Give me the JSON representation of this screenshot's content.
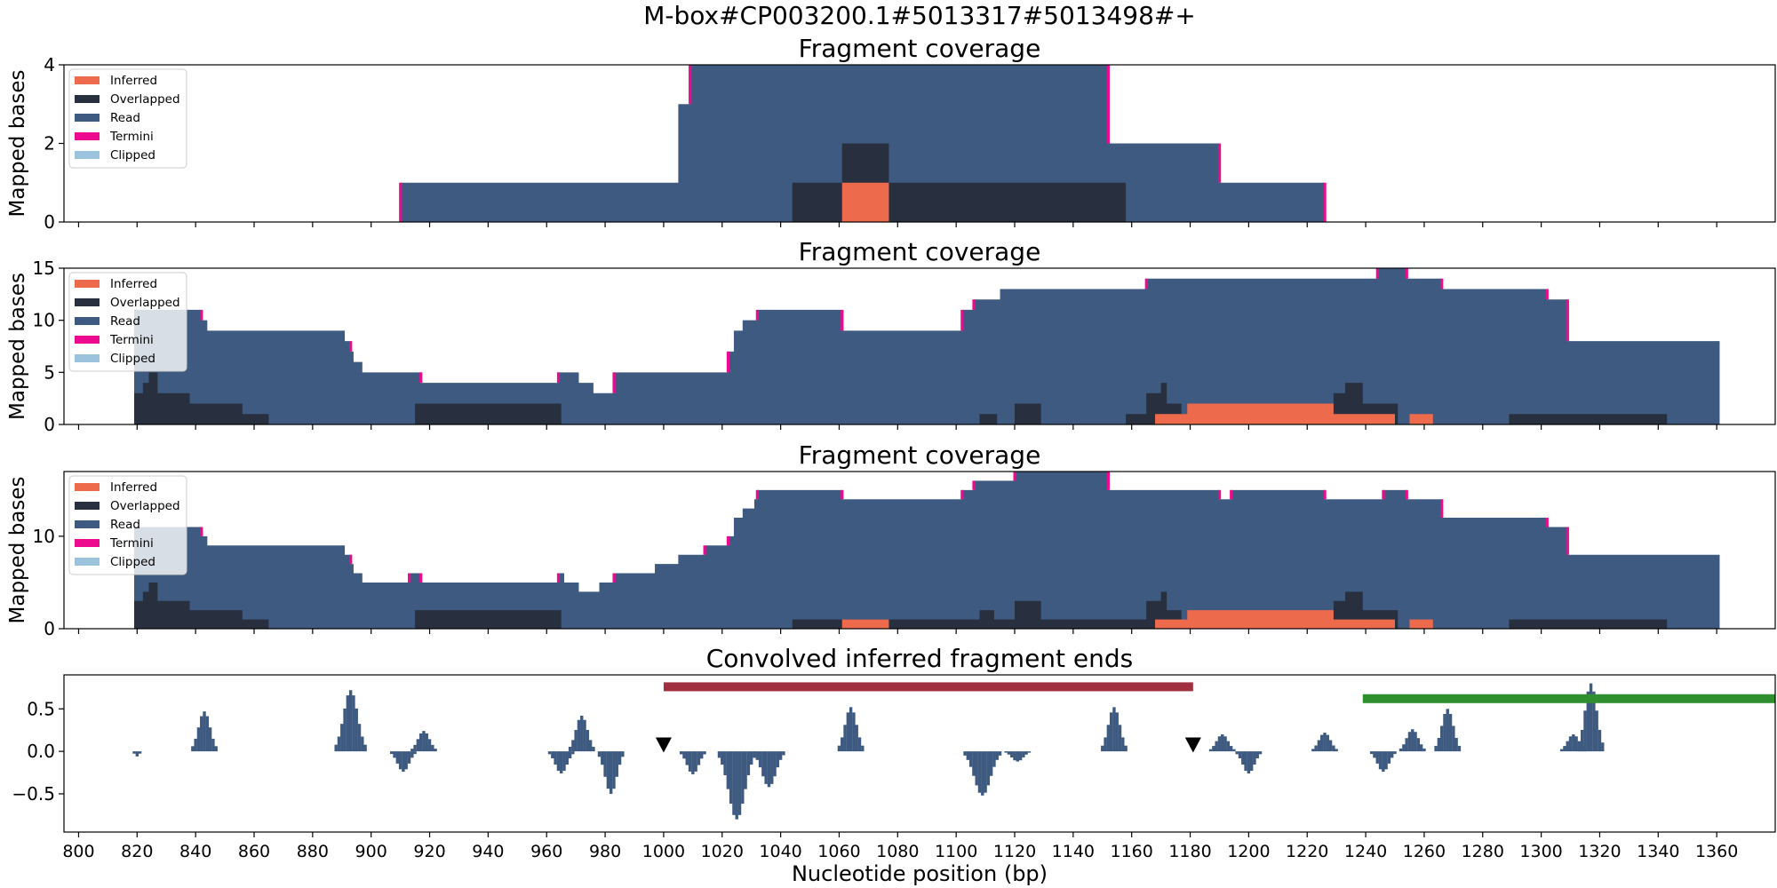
{
  "figure": {
    "suptitle": "M-box#CP003200.1#5013317#5013498#+",
    "xlabel": "Nucleotide position (bp)",
    "x_ticks": [
      800,
      820,
      840,
      860,
      880,
      900,
      920,
      940,
      960,
      980,
      1000,
      1020,
      1040,
      1060,
      1080,
      1100,
      1120,
      1140,
      1160,
      1180,
      1200,
      1220,
      1240,
      1260,
      1280,
      1300,
      1320,
      1340,
      1360
    ],
    "xlim": [
      795,
      1380
    ]
  },
  "legend": [
    {
      "label": "Inferred",
      "color": "#ee6a4d"
    },
    {
      "label": "Overlapped",
      "color": "#28303f"
    },
    {
      "label": "Read",
      "color": "#3e5a80"
    },
    {
      "label": "Termini",
      "color": "#ee0a8e"
    },
    {
      "label": "Clipped",
      "color": "#9cc3dd"
    }
  ],
  "chart_data": [
    {
      "type": "area",
      "title": "Fragment coverage",
      "ylabel": "Mapped bases",
      "ylim": [
        0,
        4
      ],
      "yticks": [
        0,
        2,
        4
      ],
      "legend_position": "top-left",
      "read": [
        [
          910,
          1
        ],
        [
          1005,
          3
        ],
        [
          1009,
          4
        ],
        [
          1152,
          2
        ],
        [
          1190,
          1
        ],
        [
          1226,
          0
        ]
      ],
      "overlapped": [
        [
          1044,
          1
        ],
        [
          1061,
          2
        ],
        [
          1077,
          1
        ],
        [
          1158,
          0
        ]
      ],
      "inferred": [
        [
          1061,
          1
        ],
        [
          1077,
          0
        ]
      ],
      "termini": [
        910,
        1009,
        1152,
        1190,
        1226
      ]
    },
    {
      "type": "area",
      "title": "Fragment coverage",
      "ylabel": "Mapped bases",
      "ylim": [
        0,
        15
      ],
      "yticks": [
        0,
        5,
        10,
        15
      ],
      "legend_position": "top-left",
      "read": [
        [
          819,
          11
        ],
        [
          842,
          10
        ],
        [
          844,
          9
        ],
        [
          891,
          8
        ],
        [
          893,
          7
        ],
        [
          894,
          6
        ],
        [
          897,
          5
        ],
        [
          917,
          4
        ],
        [
          964,
          5
        ],
        [
          971,
          4
        ],
        [
          976,
          3
        ],
        [
          983,
          5
        ],
        [
          1022,
          7
        ],
        [
          1024,
          9
        ],
        [
          1027,
          10
        ],
        [
          1032,
          11
        ],
        [
          1061,
          9
        ],
        [
          1102,
          11
        ],
        [
          1106,
          12
        ],
        [
          1115,
          13
        ],
        [
          1165,
          14
        ],
        [
          1244,
          15
        ],
        [
          1254,
          14
        ],
        [
          1266,
          13
        ],
        [
          1302,
          12
        ],
        [
          1309,
          8
        ],
        [
          1361,
          0
        ]
      ],
      "overlapped": [
        [
          819,
          3
        ],
        [
          822,
          4
        ],
        [
          824,
          5
        ],
        [
          827,
          3
        ],
        [
          838,
          2
        ],
        [
          856,
          1
        ],
        [
          865,
          0
        ],
        [
          915,
          2
        ],
        [
          965,
          0
        ],
        [
          1108,
          1
        ],
        [
          1114,
          0
        ],
        [
          1120,
          2
        ],
        [
          1129,
          0
        ],
        [
          1158,
          1
        ],
        [
          1165,
          3
        ],
        [
          1170,
          4
        ],
        [
          1172,
          2
        ],
        [
          1177,
          1
        ],
        [
          1229,
          3
        ],
        [
          1233,
          4
        ],
        [
          1239,
          2
        ],
        [
          1251,
          0
        ],
        [
          1276,
          0
        ],
        [
          1289,
          1
        ],
        [
          1343,
          0
        ]
      ],
      "inferred": [
        [
          1168,
          1
        ],
        [
          1179,
          2
        ],
        [
          1229,
          1
        ],
        [
          1250,
          0
        ],
        [
          1255,
          1
        ],
        [
          1263,
          0
        ]
      ],
      "termini": [
        842,
        893,
        917,
        964,
        983,
        1022,
        1032,
        1061,
        1102,
        1106,
        1165,
        1244,
        1254,
        1266,
        1302,
        1309
      ]
    },
    {
      "type": "area",
      "title": "Fragment coverage",
      "ylabel": "Mapped bases",
      "ylim": [
        0,
        17
      ],
      "yticks": [
        0,
        10
      ],
      "legend_position": "top-left",
      "read": [
        [
          819,
          11
        ],
        [
          842,
          10
        ],
        [
          844,
          9
        ],
        [
          891,
          8
        ],
        [
          893,
          7
        ],
        [
          894,
          6
        ],
        [
          897,
          5
        ],
        [
          913,
          6
        ],
        [
          917,
          5
        ],
        [
          964,
          6
        ],
        [
          966,
          5
        ],
        [
          971,
          4
        ],
        [
          978,
          5
        ],
        [
          983,
          6
        ],
        [
          997,
          7
        ],
        [
          1005,
          8
        ],
        [
          1014,
          9
        ],
        [
          1022,
          10
        ],
        [
          1024,
          12
        ],
        [
          1027,
          13
        ],
        [
          1031,
          14
        ],
        [
          1032,
          15
        ],
        [
          1061,
          14
        ],
        [
          1102,
          15
        ],
        [
          1106,
          16
        ],
        [
          1120,
          17
        ],
        [
          1152,
          15
        ],
        [
          1190,
          14
        ],
        [
          1194,
          15
        ],
        [
          1226,
          14
        ],
        [
          1246,
          15
        ],
        [
          1254,
          14
        ],
        [
          1266,
          12
        ],
        [
          1302,
          11
        ],
        [
          1309,
          8
        ],
        [
          1361,
          0
        ]
      ],
      "overlapped": [
        [
          819,
          3
        ],
        [
          822,
          4
        ],
        [
          824,
          5
        ],
        [
          827,
          3
        ],
        [
          838,
          2
        ],
        [
          856,
          1
        ],
        [
          865,
          0
        ],
        [
          915,
          2
        ],
        [
          965,
          0
        ],
        [
          1044,
          1
        ],
        [
          1108,
          2
        ],
        [
          1113,
          1
        ],
        [
          1120,
          3
        ],
        [
          1129,
          1
        ],
        [
          1158,
          1
        ],
        [
          1165,
          3
        ],
        [
          1170,
          4
        ],
        [
          1172,
          2
        ],
        [
          1177,
          1
        ],
        [
          1229,
          3
        ],
        [
          1233,
          4
        ],
        [
          1239,
          2
        ],
        [
          1251,
          0
        ],
        [
          1276,
          0
        ],
        [
          1289,
          1
        ],
        [
          1343,
          0
        ]
      ],
      "inferred": [
        [
          1061,
          1
        ],
        [
          1077,
          0
        ],
        [
          1168,
          1
        ],
        [
          1179,
          2
        ],
        [
          1229,
          1
        ],
        [
          1250,
          0
        ],
        [
          1255,
          1
        ],
        [
          1263,
          0
        ]
      ],
      "termini": [
        842,
        893,
        913,
        917,
        964,
        983,
        1014,
        1022,
        1032,
        1061,
        1102,
        1106,
        1120,
        1152,
        1190,
        1194,
        1226,
        1246,
        1254,
        1266,
        1302,
        1309
      ]
    },
    {
      "type": "bar",
      "title": "Convolved inferred fragment ends",
      "ylim": [
        -0.95,
        0.9
      ],
      "yticks": [
        0.5,
        0.0,
        -0.5
      ],
      "ytick_labels": [
        "0.5",
        "0.0",
        "−0.5"
      ],
      "peaks": [
        {
          "center": 820,
          "height": -0.06,
          "halfwidth": 1
        },
        {
          "center": 843,
          "height": 0.47,
          "halfwidth": 4
        },
        {
          "center": 893,
          "height": 0.72,
          "halfwidth": 5
        },
        {
          "center": 911,
          "height": -0.24,
          "halfwidth": 4
        },
        {
          "center": 918,
          "height": 0.24,
          "halfwidth": 4
        },
        {
          "center": 965,
          "height": -0.26,
          "halfwidth": 4
        },
        {
          "center": 972,
          "height": 0.42,
          "halfwidth": 4
        },
        {
          "center": 982,
          "height": -0.5,
          "halfwidth": 4
        },
        {
          "center": 1010,
          "height": -0.27,
          "halfwidth": 4
        },
        {
          "center": 1025,
          "height": -0.8,
          "halfwidth": 6
        },
        {
          "center": 1036,
          "height": -0.42,
          "halfwidth": 5
        },
        {
          "center": 1064,
          "height": 0.52,
          "halfwidth": 4
        },
        {
          "center": 1109,
          "height": -0.52,
          "halfwidth": 6
        },
        {
          "center": 1121,
          "height": -0.12,
          "halfwidth": 4
        },
        {
          "center": 1154,
          "height": 0.52,
          "halfwidth": 4
        },
        {
          "center": 1191,
          "height": 0.2,
          "halfwidth": 4
        },
        {
          "center": 1200,
          "height": -0.26,
          "halfwidth": 4
        },
        {
          "center": 1226,
          "height": 0.22,
          "halfwidth": 4
        },
        {
          "center": 1246,
          "height": -0.24,
          "halfwidth": 4
        },
        {
          "center": 1256,
          "height": 0.26,
          "halfwidth": 4
        },
        {
          "center": 1268,
          "height": 0.5,
          "halfwidth": 4
        },
        {
          "center": 1311,
          "height": 0.2,
          "halfwidth": 4
        },
        {
          "center": 1317,
          "height": 0.8,
          "halfwidth": 4
        }
      ],
      "annotations": [
        {
          "kind": "band",
          "x0": 1000,
          "x1": 1181,
          "y": 0.76,
          "color": "#a03040"
        },
        {
          "kind": "band",
          "x0": 1239,
          "x1": 1380,
          "y": 0.62,
          "color": "#2f8f2f"
        },
        {
          "kind": "marker",
          "x": 1000,
          "y": 0.08,
          "symbol": "triangle-down",
          "color": "#000000"
        },
        {
          "kind": "marker",
          "x": 1181,
          "y": 0.08,
          "symbol": "triangle-down",
          "color": "#000000"
        }
      ]
    }
  ]
}
